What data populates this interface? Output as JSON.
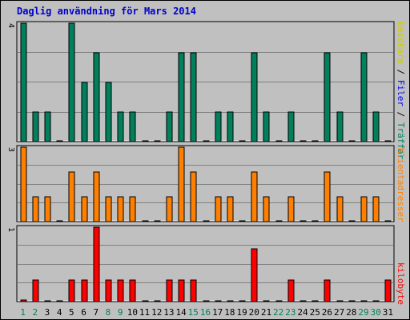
{
  "chart_data": {
    "type": "bar",
    "title": "Daglig användning för Mars 2014",
    "categories": [
      "1",
      "2",
      "3",
      "4",
      "5",
      "6",
      "7",
      "8",
      "9",
      "10",
      "11",
      "12",
      "13",
      "14",
      "15",
      "16",
      "17",
      "18",
      "19",
      "20",
      "21",
      "22",
      "23",
      "24",
      "25",
      "26",
      "27",
      "28",
      "29",
      "30",
      "31"
    ],
    "weekend_days": [
      "1",
      "2",
      "8",
      "9",
      "15",
      "16",
      "22",
      "23",
      "29",
      "30"
    ],
    "grid": true,
    "panels": [
      {
        "name": "hits-files-panel",
        "ymax": 4,
        "ymax_label": "4",
        "series": [
          {
            "name": "Träffar",
            "color": "#00805c",
            "values": [
              4,
              1,
              1,
              0,
              4,
              2,
              3,
              2,
              1,
              1,
              0,
              0,
              1,
              3,
              3,
              0,
              1,
              1,
              0,
              3,
              1,
              0,
              1,
              0,
              0,
              3,
              1,
              0,
              3,
              1,
              0
            ]
          }
        ]
      },
      {
        "name": "visitors-panel",
        "ymax": 3,
        "ymax_label": "3",
        "series": [
          {
            "name": "Klientadresser",
            "color": "#ff8000",
            "values": [
              3,
              1,
              1,
              0,
              2,
              1,
              2,
              1,
              1,
              1,
              0,
              0,
              1,
              3,
              2,
              0,
              1,
              1,
              0,
              2,
              1,
              0,
              1,
              0,
              0,
              2,
              1,
              0,
              1,
              1,
              0
            ]
          }
        ]
      },
      {
        "name": "kbytes-panel",
        "ymax": 1,
        "ymax_label": "1",
        "series": [
          {
            "name": "kilobyte",
            "color": "#ff0000",
            "values": [
              0.02,
              0.29,
              0,
              0,
              0.29,
              0.29,
              1.0,
              0.29,
              0.29,
              0.29,
              0,
              0,
              0.29,
              0.29,
              0.29,
              0,
              0,
              0,
              0,
              0.71,
              0,
              0,
              0.29,
              0,
              0,
              0.29,
              0,
              0,
              0,
              0,
              0.29
            ]
          }
        ]
      }
    ]
  },
  "legend_top": {
    "separator": " / ",
    "items": [
      {
        "text": "Besökare",
        "color": "#cccc00"
      },
      {
        "text": "Filer",
        "color": "#0000ff"
      },
      {
        "text": "Träffar",
        "color": "#00805c"
      }
    ]
  },
  "legend_mid": {
    "text": "Klientadresser",
    "color": "#ff8000"
  },
  "legend_bot": {
    "text": "kilobyte",
    "color": "#ff0000"
  },
  "colors": {
    "background": "#c0c0c0",
    "grid": "#808080",
    "weekday_label": "#000000",
    "weekend_label": "#00805c"
  }
}
